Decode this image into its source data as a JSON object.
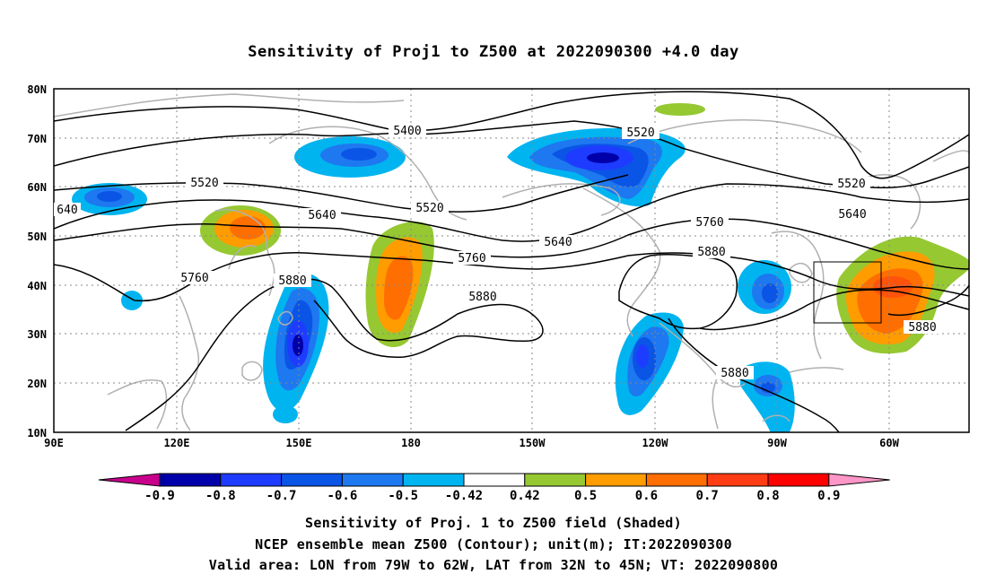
{
  "title": "Sensitivity of Proj1 to Z500 at 2022090300 +4.0 day",
  "lat_ticks": [
    "80N",
    "70N",
    "60N",
    "50N",
    "40N",
    "30N",
    "20N",
    "10N"
  ],
  "lon_ticks": [
    "90E",
    "120E",
    "150E",
    "180",
    "150W",
    "120W",
    "90W",
    "60W"
  ],
  "contour_labels": [
    "5400",
    "5520",
    "5520",
    "5520",
    "5520",
    "5640",
    "5640",
    "5640",
    "640",
    "5760",
    "5760",
    "5760",
    "5880",
    "5880",
    "5880",
    "5880",
    "5880"
  ],
  "colorbar": {
    "labels": [
      "-0.9",
      "-0.8",
      "-0.7",
      "-0.6",
      "-0.5",
      "-0.42",
      "0.42",
      "0.5",
      "0.6",
      "0.7",
      "0.8",
      "0.9"
    ],
    "colors": [
      "#c8008c",
      "#0000aa",
      "#1e3cff",
      "#0a55e6",
      "#1e78f0",
      "#00b4f0",
      "#ffffff",
      "#96c832",
      "#ff9c00",
      "#ff6e00",
      "#ff3c14",
      "#ff0000",
      "#ff96c8"
    ]
  },
  "captions": [
    "Sensitivity of Proj. 1 to Z500 field (Shaded)",
    "NCEP ensemble mean Z500 (Contour); unit(m); IT:2022090300",
    "Valid area: LON from 79W to 62W, LAT from 32N to 45N; VT: 2022090800"
  ]
}
